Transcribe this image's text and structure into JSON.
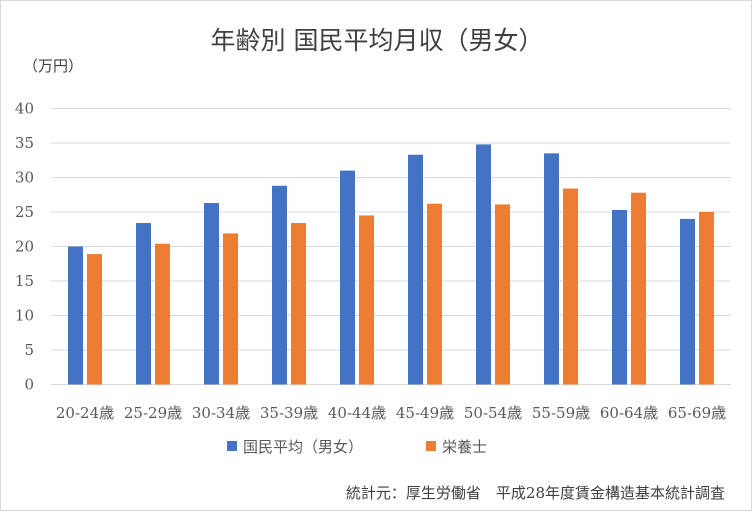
{
  "chart_data": {
    "type": "bar",
    "title": "年齢別 国民平均月収（男女）",
    "unit_label": "（万円）",
    "ylim": [
      0,
      40
    ],
    "yticks": [
      0,
      5,
      10,
      15,
      20,
      25,
      30,
      35,
      40
    ],
    "grid": true,
    "legend_position": "bottom",
    "categories": [
      "20-24歳",
      "25-29歳",
      "30-34歳",
      "35-39歳",
      "40-44歳",
      "45-49歳",
      "50-54歳",
      "55-59歳",
      "60-64歳",
      "65-69歳"
    ],
    "series": [
      {
        "name": "国民平均（男女）",
        "color": "#4472c4",
        "values": [
          20.0,
          23.4,
          26.3,
          28.8,
          31.0,
          33.3,
          34.8,
          33.5,
          25.3,
          24.0
        ]
      },
      {
        "name": "栄養士",
        "color": "#ed7d31",
        "values": [
          18.9,
          20.4,
          21.9,
          23.4,
          24.5,
          26.2,
          26.1,
          28.4,
          27.8,
          25.0
        ]
      }
    ],
    "source": "統計元：厚生労働省　平成28年度賃金構造基本統計調査"
  }
}
